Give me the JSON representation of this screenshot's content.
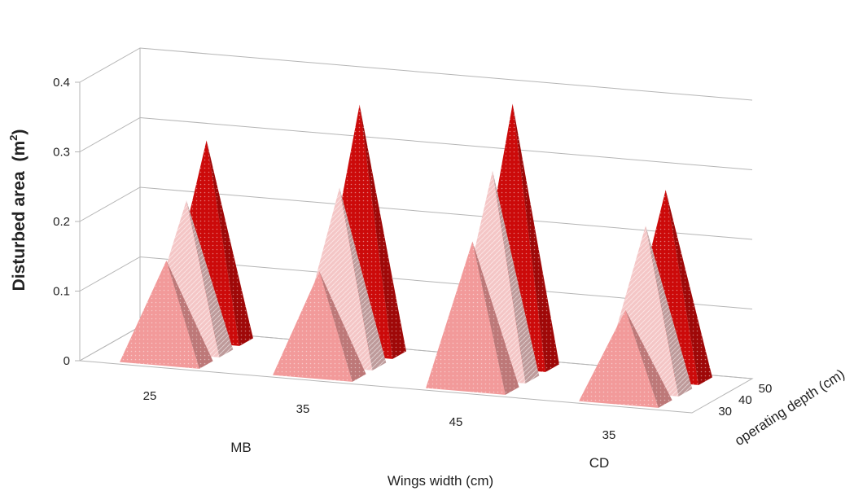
{
  "chart_data": {
    "type": "bar",
    "shape": "pyramid-3d",
    "ylabel_main": "Disturbed area ",
    "ylabel_unit": "(m",
    "ylabel_sup": "2",
    "ylabel_close": ")",
    "xlabel": "Wings width (cm)",
    "zlabel": "operating depth (cm)",
    "ylim": [
      0,
      0.4
    ],
    "y_ticks": [
      "0",
      "0.1",
      "0.2",
      "0.3",
      "0.4"
    ],
    "categories": [
      "25",
      "35",
      "45",
      "35"
    ],
    "groups": [
      "MB",
      "CD"
    ],
    "series": [
      {
        "name": "30",
        "values": [
          0.145,
          0.148,
          0.21,
          0.13
        ],
        "color": "#f29a9a"
      },
      {
        "name": "40",
        "values": [
          0.215,
          0.252,
          0.295,
          0.235
        ],
        "color": "#f4c6c6"
      },
      {
        "name": "50",
        "values": [
          0.285,
          0.355,
          0.375,
          0.27
        ],
        "color": "#cc0a0a"
      }
    ]
  }
}
